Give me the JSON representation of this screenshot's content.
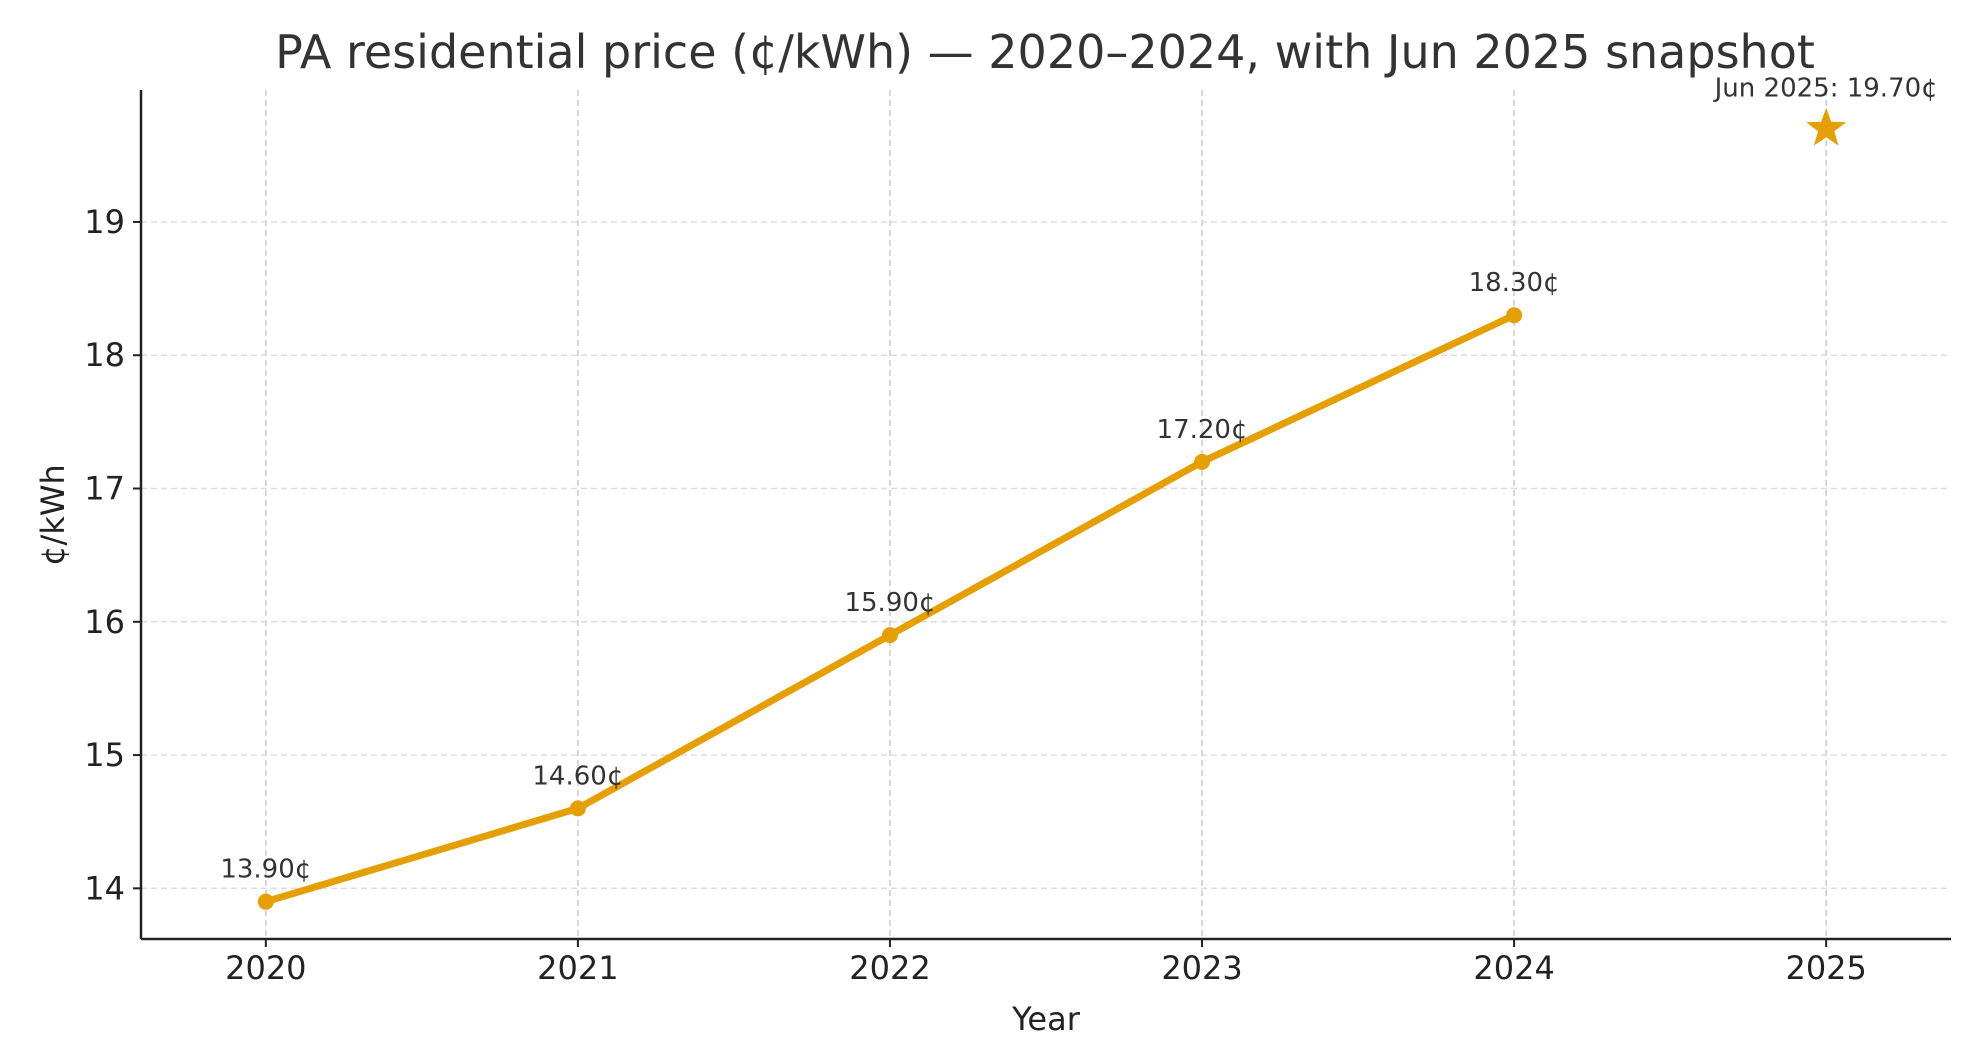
{
  "chart_data": {
    "type": "line",
    "title": "PA residential price (¢/kWh) — 2020–2024, with Jun 2025 snapshot",
    "xlabel": "Year",
    "ylabel": "¢/kWh",
    "xlim": [
      2019.6,
      2025.4
    ],
    "ylim": [
      13.62,
      19.99
    ],
    "x_ticks": [
      "2020",
      "2021",
      "2022",
      "2023",
      "2024",
      "2025"
    ],
    "y_ticks": [
      "14",
      "15",
      "16",
      "17",
      "18",
      "19"
    ],
    "grid": true,
    "series": [
      {
        "x": [
          2020,
          2021,
          2022,
          2023,
          2024
        ],
        "y": [
          13.9,
          14.6,
          15.9,
          17.2,
          18.3
        ],
        "labels": [
          "13.90¢",
          "14.60¢",
          "15.90¢",
          "17.20¢",
          "18.30¢"
        ],
        "color": "#E69F00",
        "marker": "circle"
      }
    ],
    "snapshot": {
      "x": 2025,
      "y": 19.7,
      "label": "Jun 2025: 19.70¢",
      "marker": "star",
      "color": "#E69F00"
    }
  }
}
